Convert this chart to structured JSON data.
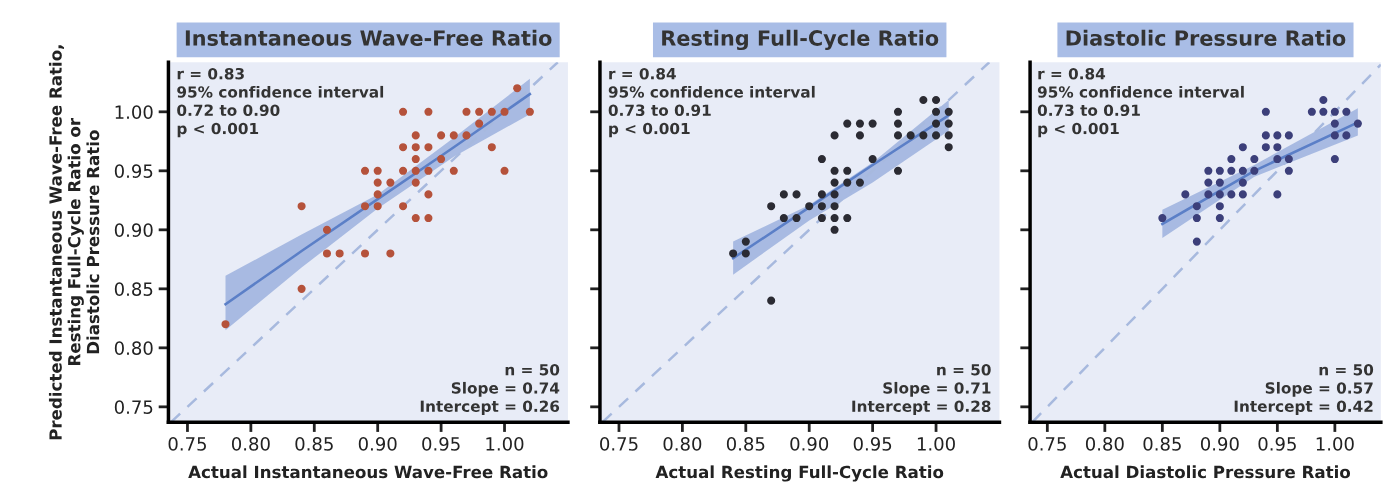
{
  "chart_data": [
    {
      "type": "scatter",
      "title": "Instantaneous Wave-Free Ratio",
      "xlabel": "Actual Instantaneous Wave-Free Ratio",
      "ylabel": "Predicted Instantaneous Wave-Free Ratio,\nResting Full-Cycle Ratio or\nDiastolic Pressure Ratio",
      "xlim": [
        0.735,
        1.05
      ],
      "ylim": [
        0.737,
        1.042
      ],
      "xticks": [
        {
          "value": 0.75,
          "label": "0.75"
        },
        {
          "value": 0.8,
          "label": "0.80"
        },
        {
          "value": 0.85,
          "label": "0.85"
        },
        {
          "value": 0.9,
          "label": "0.90"
        },
        {
          "value": 0.95,
          "label": "0.95"
        },
        {
          "value": 1.0,
          "label": "1.00"
        }
      ],
      "yticks": [
        {
          "value": 0.75,
          "label": "0.75"
        },
        {
          "value": 0.8,
          "label": "0.80"
        },
        {
          "value": 0.85,
          "label": "0.85"
        },
        {
          "value": 0.9,
          "label": "0.90"
        },
        {
          "value": 0.95,
          "label": "0.95"
        },
        {
          "value": 1.0,
          "label": "1.00"
        }
      ],
      "grid": false,
      "legend": false,
      "annotations": [
        "r = 0.83\n95% confidence interval\n0.72 to 0.90\np < 0.001",
        "n = 50\nSlope = 0.74\nIntercept = 0.26"
      ],
      "series": [
        {
          "type": "line",
          "color": "#a7b9de",
          "line_style": "dashed",
          "marker": "none",
          "x": [
            0.737,
            1.042
          ],
          "values": [
            0.737,
            1.042
          ]
        },
        {
          "color": "#b5523b",
          "marker": "circle",
          "x": [
            0.78,
            0.84,
            0.84,
            0.86,
            0.86,
            0.87,
            0.89,
            0.91,
            0.89,
            0.89,
            0.9,
            0.9,
            0.9,
            0.9,
            0.91,
            0.92,
            0.92,
            0.92,
            0.92,
            0.93,
            0.93,
            0.93,
            0.93,
            0.93,
            0.93,
            0.94,
            0.94,
            0.94,
            0.94,
            0.94,
            0.95,
            0.95,
            0.96,
            0.96,
            0.97,
            0.97,
            0.98,
            0.98,
            0.99,
            0.99,
            1.0,
            1.0,
            1.01,
            1.02
          ],
          "values": [
            0.82,
            0.92,
            0.85,
            0.9,
            0.88,
            0.88,
            0.88,
            0.88,
            0.92,
            0.95,
            0.95,
            0.94,
            0.93,
            0.92,
            0.94,
            1.0,
            0.97,
            0.95,
            0.92,
            0.98,
            0.97,
            0.96,
            0.95,
            0.94,
            0.91,
            1.0,
            0.97,
            0.95,
            0.93,
            0.91,
            0.98,
            0.96,
            0.98,
            0.95,
            1.0,
            0.98,
            1.0,
            0.99,
            1.0,
            0.97,
            1.0,
            0.95,
            1.02,
            1.0
          ]
        },
        {
          "type": "line",
          "color": "#5b7fc7",
          "line_style": "solid",
          "marker": "none",
          "x": [
            0.78,
            0.84,
            0.9,
            0.96,
            1.02
          ],
          "values": [
            0.837,
            0.882,
            0.926,
            0.97,
            1.015
          ],
          "lower": [
            0.815,
            0.868,
            0.918,
            0.962,
            0.998
          ],
          "upper": [
            0.861,
            0.896,
            0.93,
            0.978,
            1.028
          ]
        }
      ]
    },
    {
      "type": "scatter",
      "title": "Resting Full-Cycle Ratio",
      "xlabel": "Actual Resting Full-Cycle Ratio",
      "tick_labels": "x",
      "xlim": [
        0.735,
        1.05
      ],
      "ylim": [
        0.737,
        1.042
      ],
      "xticks": [
        {
          "value": 0.75,
          "label": "0.75"
        },
        {
          "value": 0.8,
          "label": "0.80"
        },
        {
          "value": 0.85,
          "label": "0.85"
        },
        {
          "value": 0.9,
          "label": "0.90"
        },
        {
          "value": 0.95,
          "label": "0.95"
        },
        {
          "value": 1.0,
          "label": "1.00"
        }
      ],
      "yticks": [
        {
          "value": 0.75,
          "label": null
        },
        {
          "value": 0.8,
          "label": null
        },
        {
          "value": 0.85,
          "label": null
        },
        {
          "value": 0.9,
          "label": null
        },
        {
          "value": 0.95,
          "label": null
        },
        {
          "value": 1.0,
          "label": null
        }
      ],
      "grid": false,
      "legend": false,
      "annotations": [
        "r = 0.84\n95% confidence interval\n0.73 to 0.91\np < 0.001",
        "n = 50\nSlope = 0.71\nIntercept = 0.28"
      ],
      "series": [
        {
          "type": "line",
          "color": "#a7b9de",
          "line_style": "dashed",
          "marker": "none",
          "x": [
            0.737,
            1.042
          ],
          "values": [
            0.737,
            1.042
          ]
        },
        {
          "color": "#2b2b33",
          "marker": "circle",
          "x": [
            0.84,
            0.85,
            0.85,
            0.87,
            0.87,
            0.88,
            0.88,
            0.89,
            0.89,
            0.9,
            0.91,
            0.91,
            0.91,
            0.91,
            0.92,
            0.92,
            0.92,
            0.92,
            0.92,
            0.92,
            0.92,
            0.93,
            0.93,
            0.93,
            0.93,
            0.94,
            0.94,
            0.94,
            0.95,
            0.95,
            0.97,
            0.97,
            0.97,
            0.97,
            0.98,
            0.99,
            0.99,
            1.0,
            1.0,
            1.0,
            1.0,
            1.01,
            1.01,
            1.01,
            1.01
          ],
          "values": [
            0.88,
            0.89,
            0.88,
            0.84,
            0.92,
            0.93,
            0.91,
            0.93,
            0.91,
            0.92,
            0.96,
            0.93,
            0.92,
            0.91,
            0.98,
            0.95,
            0.94,
            0.93,
            0.92,
            0.91,
            0.9,
            0.99,
            0.95,
            0.94,
            0.91,
            0.99,
            0.98,
            0.94,
            0.99,
            0.96,
            1.0,
            0.99,
            0.98,
            0.95,
            0.98,
            1.01,
            0.98,
            1.01,
            1.0,
            0.99,
            0.98,
            1.0,
            0.99,
            0.98,
            0.97
          ]
        },
        {
          "type": "line",
          "color": "#5b7fc7",
          "line_style": "solid",
          "marker": "none",
          "x": [
            0.84,
            0.9,
            0.95,
            1.01
          ],
          "values": [
            0.876,
            0.919,
            0.955,
            0.997
          ],
          "lower": [
            0.862,
            0.908,
            0.94,
            0.984
          ],
          "upper": [
            0.89,
            0.921,
            0.957,
            1.01
          ]
        }
      ]
    },
    {
      "type": "scatter",
      "title": "Diastolic Pressure Ratio",
      "xlabel": "Actual Diastolic Pressure Ratio",
      "tick_labels": "x",
      "xlim": [
        0.735,
        1.04
      ],
      "ylim": [
        0.737,
        1.042
      ],
      "xticks": [
        {
          "value": 0.75,
          "label": "0.75"
        },
        {
          "value": 0.8,
          "label": "0.80"
        },
        {
          "value": 0.85,
          "label": "0.85"
        },
        {
          "value": 0.9,
          "label": "0.90"
        },
        {
          "value": 0.95,
          "label": "0.95"
        },
        {
          "value": 1.0,
          "label": "1.00"
        }
      ],
      "yticks": [
        {
          "value": 0.75,
          "label": null
        },
        {
          "value": 0.8,
          "label": null
        },
        {
          "value": 0.85,
          "label": null
        },
        {
          "value": 0.9,
          "label": null
        },
        {
          "value": 0.95,
          "label": null
        },
        {
          "value": 1.0,
          "label": null
        }
      ],
      "grid": false,
      "legend": false,
      "annotations": [
        "r = 0.84\n95% confidence interval\n0.73 to 0.91\np < 0.001",
        "n = 50\nSlope = 0.57\nIntercept = 0.42"
      ],
      "series": [
        {
          "type": "line",
          "color": "#a7b9de",
          "line_style": "dashed",
          "marker": "none",
          "x": [
            0.737,
            1.04
          ],
          "values": [
            0.737,
            1.04
          ]
        },
        {
          "color": "#3c3f7a",
          "marker": "circle",
          "x": [
            0.85,
            0.87,
            0.88,
            0.88,
            0.88,
            0.89,
            0.89,
            0.89,
            0.9,
            0.9,
            0.9,
            0.9,
            0.9,
            0.91,
            0.91,
            0.91,
            0.92,
            0.92,
            0.92,
            0.92,
            0.93,
            0.93,
            0.94,
            0.94,
            0.94,
            0.95,
            0.95,
            0.95,
            0.95,
            0.96,
            0.96,
            0.96,
            0.98,
            0.99,
            0.99,
            1.0,
            1.0,
            1.0,
            1.0,
            1.01,
            1.01,
            1.02
          ],
          "values": [
            0.91,
            0.93,
            0.92,
            0.91,
            0.89,
            0.95,
            0.94,
            0.93,
            0.95,
            0.94,
            0.93,
            0.92,
            0.91,
            0.96,
            0.95,
            0.93,
            0.97,
            0.95,
            0.94,
            0.93,
            0.96,
            0.95,
            1.0,
            0.98,
            0.97,
            0.98,
            0.97,
            0.96,
            0.93,
            0.98,
            0.96,
            0.95,
            1.0,
            1.01,
            1.0,
            1.0,
            0.99,
            0.98,
            0.96,
            1.0,
            0.98,
            0.99
          ]
        },
        {
          "type": "line",
          "color": "#5b7fc7",
          "line_style": "solid",
          "marker": "none",
          "x": [
            0.85,
            0.93,
            1.02
          ],
          "values": [
            0.905,
            0.95,
            0.991
          ],
          "lower": [
            0.893,
            0.945,
            0.98
          ],
          "upper": [
            0.917,
            0.955,
            1.003
          ]
        }
      ]
    }
  ]
}
